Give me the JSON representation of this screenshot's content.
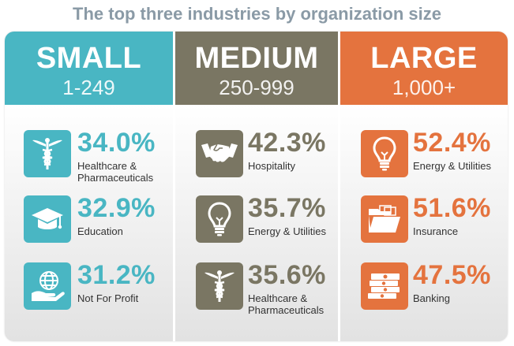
{
  "title": "The top three industries by organization size",
  "colors": {
    "small": "#49b6c3",
    "medium": "#7a7663",
    "large": "#e4733e"
  },
  "columns": [
    {
      "name": "SMALL",
      "range": "1-249",
      "items": [
        {
          "pct": "34.0%",
          "industry": "Healthcare & Pharmaceuticals",
          "icon": "caduceus-icon"
        },
        {
          "pct": "32.9%",
          "industry": "Education",
          "icon": "graduation-cap-icon"
        },
        {
          "pct": "31.2%",
          "industry": "Not For Profit",
          "icon": "globe-in-hand-icon"
        }
      ]
    },
    {
      "name": "MEDIUM",
      "range": "250-999",
      "items": [
        {
          "pct": "42.3%",
          "industry": "Hospitality",
          "icon": "handshake-icon"
        },
        {
          "pct": "35.7%",
          "industry": "Energy & Utilities",
          "icon": "lightbulb-icon"
        },
        {
          "pct": "35.6%",
          "industry": "Healthcare & Pharmaceuticals",
          "icon": "caduceus-icon"
        }
      ]
    },
    {
      "name": "LARGE",
      "range": "1,000+",
      "items": [
        {
          "pct": "52.4%",
          "industry": "Energy & Utilities",
          "icon": "lightbulb-icon"
        },
        {
          "pct": "51.6%",
          "industry": "Insurance",
          "icon": "folder-icon"
        },
        {
          "pct": "47.5%",
          "industry": "Banking",
          "icon": "money-stack-icon"
        }
      ]
    }
  ]
}
